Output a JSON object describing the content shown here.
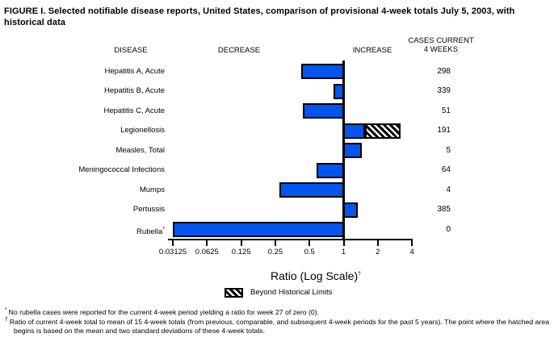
{
  "title": "FIGURE I. Selected notifiable disease reports, United States, comparison of provisional 4-week totals July 5, 2003, with historical data",
  "columns": {
    "disease": "DISEASE",
    "decrease": "DECREASE",
    "increase": "INCREASE",
    "cases_line1": "CASES CURRENT",
    "cases_line2": "4 WEEKS"
  },
  "chart_data": {
    "type": "bar",
    "orientation": "horizontal",
    "scale": "log2",
    "title": "FIGURE I. Selected notifiable disease reports, United States, comparison of provisional 4-week totals July 5, 2003, with historical data",
    "xlabel": "Ratio (Log Scale)",
    "xlabel_sup": "†",
    "axis_ticks": [
      0.03125,
      0.0625,
      0.125,
      0.25,
      0.5,
      1,
      2,
      4
    ],
    "tick_labels": [
      "0.03125",
      "0.0625",
      "0.125",
      "0.25",
      "0.5",
      "1",
      "2",
      "4"
    ],
    "xlim": [
      0.03125,
      4
    ],
    "baseline": 1,
    "legend": {
      "label": "Beyond Historical Limits",
      "pattern": "diagonal-hatch",
      "position": "below-axis"
    },
    "rows": [
      {
        "disease": "Hepatitis A, Acute",
        "marker": "",
        "ratio": 0.42,
        "cases": "298"
      },
      {
        "disease": "Hepatitis B, Acute",
        "marker": "",
        "ratio": 0.81,
        "cases": "339"
      },
      {
        "disease": "Hepatitis C, Acute",
        "marker": "",
        "ratio": 0.44,
        "cases": "51"
      },
      {
        "disease": "Legionellosis",
        "marker": "",
        "ratio": 1.55,
        "beyond_historical_to": 3.2,
        "cases": "191"
      },
      {
        "disease": "Measles, Total",
        "marker": "",
        "ratio": 1.45,
        "cases": "5"
      },
      {
        "disease": "Meningococcal Infections",
        "marker": "",
        "ratio": 0.58,
        "cases": "64"
      },
      {
        "disease": "Mumps",
        "marker": "",
        "ratio": 0.27,
        "cases": "4"
      },
      {
        "disease": "Pertussis",
        "marker": "",
        "ratio": 1.33,
        "cases": "385"
      },
      {
        "disease": "Rubella",
        "marker": "*",
        "ratio": 0.03125,
        "cases": "0"
      }
    ]
  },
  "colors": {
    "bar_fill": "#0454EE",
    "bar_border": "#000000",
    "hatch_stripe": "#000000",
    "hatch_background": "#ffffff"
  },
  "footnotes": [
    {
      "marker": "*",
      "text": "No rubella cases were reported for the current 4-week period yielding a ratio for week 27 of zero (0)."
    },
    {
      "marker": "†",
      "text": "Ratio of current 4-week total to mean of 15 4-week totals (from previous, comparable, and subsequent 4-week periods for the past 5 years). The point where the hatched area begins is based on the mean and two standard deviations of these 4-week totals."
    }
  ]
}
